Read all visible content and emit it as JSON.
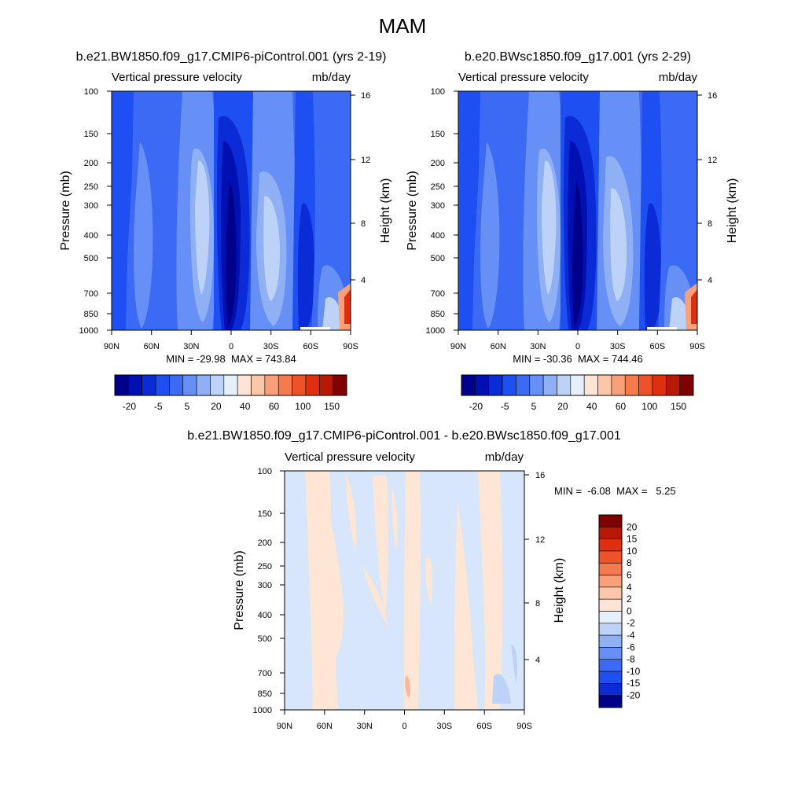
{
  "figure": {
    "title": "MAM"
  },
  "chart_data": [
    {
      "type": "heatmap",
      "title": "b.e21.BW1850.f09_g17.CMIP6-piControl.001 (yrs 2-19)",
      "subtitle_left": "Vertical pressure velocity",
      "units": "mb/day",
      "xlabel": "",
      "ylabel": "Pressure (mb)",
      "ylabel_right": "Height (km)",
      "x_ticks": [
        "90N",
        "60N",
        "30N",
        "0",
        "30S",
        "60S",
        "90S"
      ],
      "y_ticks": [
        "100",
        "150",
        "200",
        "250",
        "300",
        "400",
        "500",
        "700",
        "850",
        "1000"
      ],
      "y_right_ticks": [
        "16",
        "12",
        "8",
        "4"
      ],
      "xlim": [
        90,
        -90
      ],
      "ylim": [
        1000,
        100
      ],
      "stats_label": "MIN = -29.98  MAX = 743.84",
      "min": -29.98,
      "max": 743.84,
      "colorbar": {
        "orientation": "horizontal",
        "levels": [
          -30,
          -20,
          -15,
          -10,
          -5,
          0,
          5,
          10,
          20,
          30,
          40,
          50,
          60,
          80,
          100,
          120,
          150
        ],
        "labels": [
          "-20",
          "-5",
          "5",
          "20",
          "40",
          "60",
          "100",
          "150"
        ],
        "colors": [
          "#00008b",
          "#0010b3",
          "#0a2bd6",
          "#1e4ff2",
          "#3d6af5",
          "#6690f5",
          "#90b0f5",
          "#bcd2f7",
          "#e6f0fb",
          "#fde4d4",
          "#fcc7a8",
          "#f9a07a",
          "#f57a4e",
          "#ef5128",
          "#e02f10",
          "#b81806",
          "#7f0000"
        ]
      }
    },
    {
      "type": "heatmap",
      "title": "b.e20.BWsc1850.f09_g17.001 (yrs 2-29)",
      "subtitle_left": "Vertical pressure velocity",
      "units": "mb/day",
      "xlabel": "",
      "ylabel": "Pressure (mb)",
      "ylabel_right": "Height (km)",
      "x_ticks": [
        "90N",
        "60N",
        "30N",
        "0",
        "30S",
        "60S",
        "90S"
      ],
      "y_ticks": [
        "100",
        "150",
        "200",
        "250",
        "300",
        "400",
        "500",
        "700",
        "850",
        "1000"
      ],
      "y_right_ticks": [
        "16",
        "12",
        "8",
        "4"
      ],
      "xlim": [
        90,
        -90
      ],
      "ylim": [
        1000,
        100
      ],
      "stats_label": "MIN = -30.36  MAX = 744.46",
      "min": -30.36,
      "max": 744.46,
      "colorbar": {
        "orientation": "horizontal",
        "levels": [
          -30,
          -20,
          -15,
          -10,
          -5,
          0,
          5,
          10,
          20,
          30,
          40,
          50,
          60,
          80,
          100,
          120,
          150
        ],
        "labels": [
          "-20",
          "-5",
          "5",
          "20",
          "40",
          "60",
          "100",
          "150"
        ],
        "colors": [
          "#00008b",
          "#0010b3",
          "#0a2bd6",
          "#1e4ff2",
          "#3d6af5",
          "#6690f5",
          "#90b0f5",
          "#bcd2f7",
          "#e6f0fb",
          "#fde4d4",
          "#fcc7a8",
          "#f9a07a",
          "#f57a4e",
          "#ef5128",
          "#e02f10",
          "#b81806",
          "#7f0000"
        ]
      }
    },
    {
      "type": "heatmap",
      "title": "b.e21.BW1850.f09_g17.CMIP6-piControl.001 - b.e20.BWsc1850.f09_g17.001",
      "subtitle_left": "Vertical pressure velocity",
      "units": "mb/day",
      "xlabel": "",
      "ylabel": "Pressure (mb)",
      "ylabel_right": "Height (km)",
      "x_ticks": [
        "90N",
        "60N",
        "30N",
        "0",
        "30S",
        "60S",
        "90S"
      ],
      "y_ticks": [
        "100",
        "150",
        "200",
        "250",
        "300",
        "400",
        "500",
        "700",
        "850",
        "1000"
      ],
      "y_right_ticks": [
        "16",
        "12",
        "8",
        "4"
      ],
      "xlim": [
        90,
        -90
      ],
      "ylim": [
        1000,
        100
      ],
      "stats_label": "MIN =  -6.08  MAX =   5.25",
      "min": -6.08,
      "max": 5.25,
      "colorbar": {
        "orientation": "vertical",
        "labels": [
          "20",
          "15",
          "10",
          "8",
          "6",
          "4",
          "2",
          "0",
          "-2",
          "-4",
          "-6",
          "-8",
          "-10",
          "-15",
          "-20"
        ],
        "colors": [
          "#7f0000",
          "#b81806",
          "#e02f10",
          "#ef5128",
          "#f57a4e",
          "#f9a07a",
          "#fcc7a8",
          "#fde4d4",
          "#e6f0fb",
          "#bcd2f7",
          "#90b0f5",
          "#6690f5",
          "#3d6af5",
          "#1e4ff2",
          "#0a2bd6",
          "#00008b"
        ]
      }
    }
  ]
}
